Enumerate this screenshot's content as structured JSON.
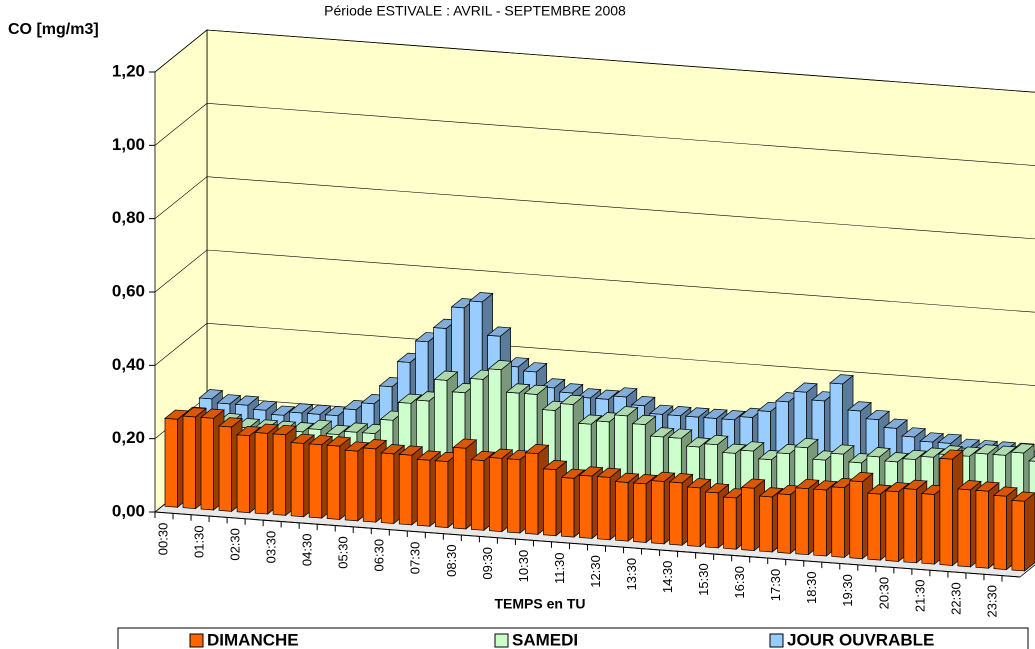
{
  "chart_data": {
    "type": "bar3d",
    "title": "Période ESTIVALE : AVRIL - SEPTEMBRE 2008",
    "y_label": "CO  [mg/m3]",
    "x_label": "TEMPS en TU",
    "categories": [
      "00:30",
      null,
      "01:30",
      null,
      "02:30",
      null,
      "03:30",
      null,
      "04:30",
      null,
      "05:30",
      null,
      "06:30",
      null,
      "07:30",
      null,
      "08:30",
      null,
      "09:30",
      null,
      "10:30",
      null,
      "11:30",
      null,
      "12:30",
      null,
      "13:30",
      null,
      "14:30",
      null,
      "15:30",
      null,
      "16:30",
      null,
      "17:30",
      null,
      "18:30",
      null,
      "19:30",
      null,
      "20:30",
      null,
      "21:30",
      null,
      "22:30",
      null,
      "23:30",
      null
    ],
    "series": [
      {
        "name": "DIMANCHE",
        "color": "#ff6600",
        "values": [
          0.24,
          0.25,
          0.25,
          0.23,
          0.21,
          0.22,
          0.22,
          0.2,
          0.2,
          0.2,
          0.19,
          0.2,
          0.19,
          0.19,
          0.18,
          0.18,
          0.22,
          0.19,
          0.2,
          0.2,
          0.22,
          0.18,
          0.16,
          0.17,
          0.17,
          0.16,
          0.16,
          0.17,
          0.17,
          0.16,
          0.15,
          0.14,
          0.17,
          0.15,
          0.16,
          0.18,
          0.18,
          0.19,
          0.21,
          0.18,
          0.19,
          0.2,
          0.19,
          0.29,
          0.21,
          0.21,
          0.2,
          0.19
        ]
      },
      {
        "name": "SAMEDI",
        "color": "#ccffcc",
        "values": [
          0.21,
          0.2,
          0.2,
          0.19,
          0.19,
          0.19,
          0.19,
          0.2,
          0.19,
          0.2,
          0.2,
          0.24,
          0.29,
          0.3,
          0.36,
          0.33,
          0.37,
          0.4,
          0.34,
          0.34,
          0.3,
          0.32,
          0.27,
          0.28,
          0.3,
          0.28,
          0.25,
          0.25,
          0.23,
          0.24,
          0.22,
          0.23,
          0.21,
          0.23,
          0.25,
          0.22,
          0.24,
          0.22,
          0.24,
          0.23,
          0.24,
          0.25,
          0.26,
          0.26,
          0.27,
          0.27,
          0.28,
          0.26
        ]
      },
      {
        "name": "JOUR OUVRABLE",
        "color": "#99ccff",
        "values": [
          0.22,
          0.21,
          0.21,
          0.2,
          0.19,
          0.2,
          0.2,
          0.2,
          0.22,
          0.24,
          0.29,
          0.36,
          0.42,
          0.46,
          0.52,
          0.54,
          0.45,
          0.37,
          0.36,
          0.32,
          0.31,
          0.3,
          0.3,
          0.31,
          0.29,
          0.27,
          0.27,
          0.27,
          0.27,
          0.27,
          0.28,
          0.3,
          0.33,
          0.36,
          0.34,
          0.39,
          0.32,
          0.3,
          0.28,
          0.26,
          0.25,
          0.25,
          0.24,
          0.24,
          0.24,
          0.24,
          0.23,
          0.23
        ]
      }
    ],
    "ylim": [
      0,
      1.2
    ],
    "yticks": [
      {
        "value": 0,
        "label": "0,00"
      },
      {
        "value": 0.2,
        "label": "0,20"
      },
      {
        "value": 0.4,
        "label": "0,40"
      },
      {
        "value": 0.6,
        "label": "0,60"
      },
      {
        "value": 0.8,
        "label": "0,80"
      },
      {
        "value": 1.0,
        "label": "1,00"
      },
      {
        "value": 1.2,
        "label": "1,20"
      }
    ],
    "grid": true,
    "legend": "bottom"
  }
}
